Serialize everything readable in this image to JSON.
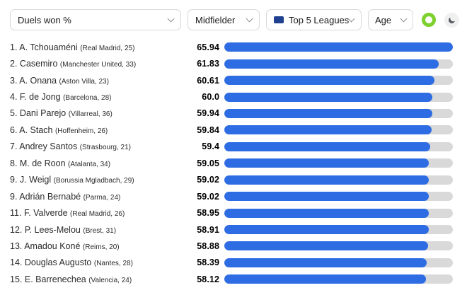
{
  "filters": {
    "stat": {
      "value": "Duels won %"
    },
    "position": {
      "value": "Midfielder"
    },
    "league": {
      "value": "Top 5 Leagues"
    },
    "age": {
      "value": "Age"
    }
  },
  "icons": {
    "league_flag": "top5-leagues-flag",
    "status_ring": "green-ring",
    "dark_mode": "crescent-moon",
    "dropdown": "chevron-down"
  },
  "colors": {
    "bar_fill": "#2e6ce4",
    "bar_track": "#d9d9d9",
    "accent_green": "#7ed02f",
    "flag_navy": "#20418f"
  },
  "chart_data": {
    "type": "bar",
    "orientation": "horizontal",
    "metric": "Duels won %",
    "scale_max": 65.94,
    "axis_hidden": true,
    "players": [
      {
        "rank": "1.",
        "name": "A. Tchouaméni",
        "team": "Real Madrid",
        "age": 25,
        "value": 65.94,
        "value_label": "65.94"
      },
      {
        "rank": "2.",
        "name": "Casemiro",
        "team": "Manchester United",
        "age": 33,
        "value": 61.83,
        "value_label": "61.83"
      },
      {
        "rank": "3.",
        "name": "A. Onana",
        "team": "Aston Villa",
        "age": 23,
        "value": 60.61,
        "value_label": "60.61"
      },
      {
        "rank": "4.",
        "name": "F. de Jong",
        "team": "Barcelona",
        "age": 28,
        "value": 60.0,
        "value_label": "60.0"
      },
      {
        "rank": "5.",
        "name": "Dani Parejo",
        "team": "Villarreal",
        "age": 36,
        "value": 59.94,
        "value_label": "59.94"
      },
      {
        "rank": "6.",
        "name": "A. Stach",
        "team": "Hoffenheim",
        "age": 26,
        "value": 59.84,
        "value_label": "59.84"
      },
      {
        "rank": "7.",
        "name": "Andrey Santos",
        "team": "Strasbourg",
        "age": 21,
        "value": 59.4,
        "value_label": "59.4"
      },
      {
        "rank": "8.",
        "name": "M. de Roon",
        "team": "Atalanta",
        "age": 34,
        "value": 59.05,
        "value_label": "59.05"
      },
      {
        "rank": "9.",
        "name": "J. Weigl",
        "team": "Borussia Mgladbach",
        "age": 29,
        "value": 59.02,
        "value_label": "59.02"
      },
      {
        "rank": "9.",
        "name": "Adrián Bernabé",
        "team": "Parma",
        "age": 24,
        "value": 59.02,
        "value_label": "59.02"
      },
      {
        "rank": "11.",
        "name": "F. Valverde",
        "team": "Real Madrid",
        "age": 26,
        "value": 58.95,
        "value_label": "58.95"
      },
      {
        "rank": "12.",
        "name": "P. Lees-Melou",
        "team": "Brest",
        "age": 31,
        "value": 58.91,
        "value_label": "58.91"
      },
      {
        "rank": "13.",
        "name": "Amadou Koné",
        "team": "Reims",
        "age": 20,
        "value": 58.88,
        "value_label": "58.88"
      },
      {
        "rank": "14.",
        "name": "Douglas Augusto",
        "team": "Nantes",
        "age": 28,
        "value": 58.39,
        "value_label": "58.39"
      },
      {
        "rank": "15.",
        "name": "E. Barrenechea",
        "team": "Valencia",
        "age": 24,
        "value": 58.12,
        "value_label": "58.12"
      }
    ]
  }
}
